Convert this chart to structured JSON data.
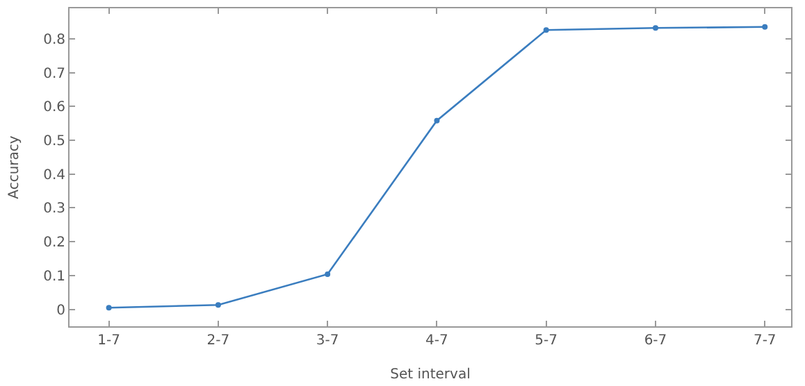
{
  "chart_data": {
    "type": "line",
    "xlabel": "Set interval",
    "ylabel": "Accuracy",
    "categories": [
      "1-7",
      "2-7",
      "3-7",
      "4-7",
      "5-7",
      "6-7",
      "7-7"
    ],
    "series": [
      {
        "color": "#3a7dbf",
        "values": [
          0.005,
          0.013,
          0.104,
          0.558,
          0.826,
          0.832,
          0.835
        ]
      }
    ],
    "ylim": [
      -0.05,
      0.89
    ],
    "yticks": [
      {
        "value": 0,
        "label": "0"
      },
      0.1,
      0.2,
      0.3,
      0.4,
      0.5,
      0.6,
      0.7,
      0.8
    ],
    "legend": false,
    "marker": "circle",
    "line_style": "solid"
  }
}
